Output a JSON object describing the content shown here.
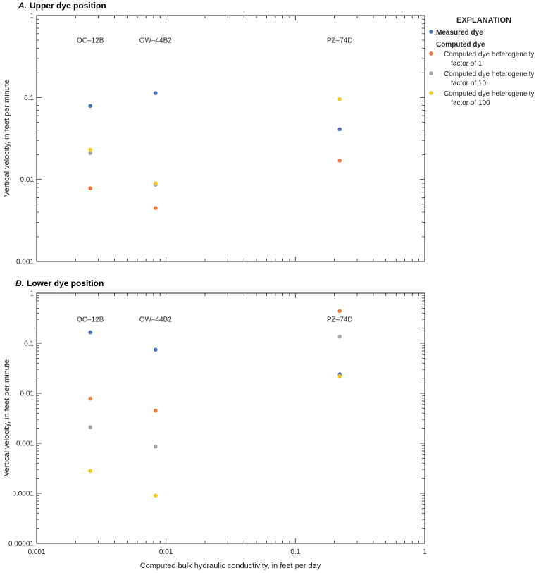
{
  "colors": {
    "measured": "#4a73b5",
    "hf1": "#f07a3c",
    "hf10": "#a5a5a5",
    "hf100": "#f7c71b"
  },
  "legend": {
    "title": "EXPLANATION",
    "measured_label": "Measured dye",
    "computed_heading": "Computed dye",
    "items": [
      {
        "key": "hf1",
        "lines": [
          "Computed dye heterogeneity",
          "factor of 1"
        ]
      },
      {
        "key": "hf10",
        "lines": [
          "Computed dye heterogeneity",
          "factor of 10"
        ]
      },
      {
        "key": "hf100",
        "lines": [
          "Computed dye heterogeneity",
          "factor of 100"
        ]
      }
    ]
  },
  "shared_xlabel": "Computed bulk hydraulic conductivity, in feet per day",
  "chart_data": [
    {
      "type": "scatter",
      "panel_letter": "A.",
      "title": "Upper dye position",
      "ylabel": "Vertical velocity, in feet per minute",
      "xscale": "log",
      "yscale": "log",
      "xlim": [
        0.001,
        1
      ],
      "ylim": [
        0.001,
        1
      ],
      "x_ticks": [
        0.001,
        0.01,
        0.1,
        1
      ],
      "y_ticks": [
        {
          "value": 1,
          "label": "1"
        },
        {
          "value": 0.1,
          "label": "0.1"
        },
        {
          "value": 0.01,
          "label": "0.01"
        },
        {
          "value": 0.001,
          "label": "0.001"
        }
      ],
      "wells": [
        {
          "label": "OC–12B",
          "x": 0.0026
        },
        {
          "label": "OW–44B2",
          "x": 0.0083
        },
        {
          "label": "PZ–74D",
          "x": 0.22
        }
      ],
      "well_label_y": 0.5,
      "series": [
        {
          "key": "measured",
          "name": "Measured dye",
          "points": [
            [
              0.0026,
              0.079
            ],
            [
              0.0083,
              0.113
            ],
            [
              0.22,
              0.041
            ]
          ]
        },
        {
          "key": "hf1",
          "name": "Computed dye heterogeneity factor of 1",
          "points": [
            [
              0.0026,
              0.0078
            ],
            [
              0.0083,
              0.0045
            ],
            [
              0.22,
              0.017
            ]
          ]
        },
        {
          "key": "hf10",
          "name": "Computed dye heterogeneity factor of 10",
          "points": [
            [
              0.0026,
              0.021
            ],
            [
              0.0083,
              0.0086
            ]
          ]
        },
        {
          "key": "hf100",
          "name": "Computed dye heterogeneity factor of 100",
          "points": [
            [
              0.0026,
              0.023
            ],
            [
              0.0083,
              0.009
            ],
            [
              0.22,
              0.095
            ]
          ]
        }
      ]
    },
    {
      "type": "scatter",
      "panel_letter": "B.",
      "title": "Lower dye position",
      "ylabel": "Vertical velocity, in feet per minute",
      "xscale": "log",
      "yscale": "log",
      "xlim": [
        0.001,
        1
      ],
      "ylim": [
        1e-05,
        1
      ],
      "x_ticks": [
        {
          "value": 0.001,
          "label": "0.001"
        },
        {
          "value": 0.01,
          "label": "0.01"
        },
        {
          "value": 0.1,
          "label": "0.1"
        },
        {
          "value": 1,
          "label": "1"
        }
      ],
      "y_ticks": [
        {
          "value": 1,
          "label": "1"
        },
        {
          "value": 0.1,
          "label": "0.1"
        },
        {
          "value": 0.01,
          "label": "0.01"
        },
        {
          "value": 0.001,
          "label": "0.001"
        },
        {
          "value": 0.0001,
          "label": "0.0001"
        },
        {
          "value": 1e-05,
          "label": "0.00001"
        }
      ],
      "wells": [
        {
          "label": "OC–12B",
          "x": 0.0026
        },
        {
          "label": "OW–44B2",
          "x": 0.0083
        },
        {
          "label": "PZ–74D",
          "x": 0.22
        }
      ],
      "well_label_y": 0.3,
      "series": [
        {
          "key": "measured",
          "name": "Measured dye",
          "points": [
            [
              0.0026,
              0.165
            ],
            [
              0.0083,
              0.074
            ],
            [
              0.22,
              0.024
            ]
          ]
        },
        {
          "key": "hf1",
          "name": "Computed dye heterogeneity factor of 1",
          "points": [
            [
              0.0026,
              0.0078
            ],
            [
              0.0083,
              0.0045
            ],
            [
              0.22,
              0.44
            ]
          ]
        },
        {
          "key": "hf10",
          "name": "Computed dye heterogeneity factor of 10",
          "points": [
            [
              0.0026,
              0.0021
            ],
            [
              0.0083,
              0.00086
            ],
            [
              0.22,
              0.135
            ]
          ]
        },
        {
          "key": "hf100",
          "name": "Computed dye heterogeneity factor of 100",
          "points": [
            [
              0.0026,
              0.00028
            ],
            [
              0.0083,
              9e-05
            ],
            [
              0.22,
              0.022
            ]
          ]
        }
      ]
    }
  ]
}
